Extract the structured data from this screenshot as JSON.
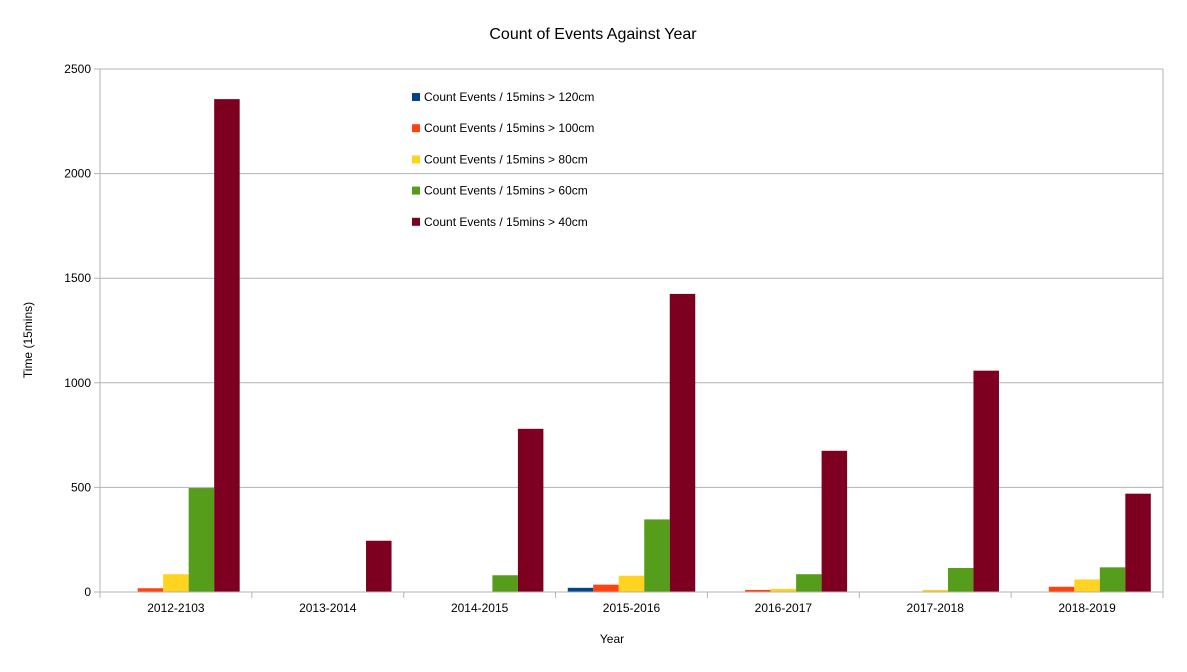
{
  "chart_data": {
    "type": "bar",
    "title": "Count of Events Against Year",
    "xlabel": "Year",
    "ylabel": "Time (15mins)",
    "ylim": [
      0,
      2500
    ],
    "yticks": [
      0,
      500,
      1000,
      1500,
      2000,
      2500
    ],
    "grid": true,
    "legend_position": "top-center",
    "categories": [
      "2012-2103",
      "2013-2014",
      "2014-2015",
      "2015-2016",
      "2016-2017",
      "2017-2018",
      "2018-2019"
    ],
    "series": [
      {
        "name": "Count Events / 15mins > 120cm",
        "color": "#004586",
        "values": [
          0,
          0,
          0,
          20,
          0,
          0,
          0
        ]
      },
      {
        "name": "Count Events / 15mins > 100cm",
        "color": "#ff420e",
        "values": [
          18,
          0,
          0,
          35,
          10,
          0,
          25
        ]
      },
      {
        "name": "Count Events / 15mins > 80cm",
        "color": "#ffd320",
        "values": [
          85,
          0,
          0,
          78,
          15,
          10,
          60
        ]
      },
      {
        "name": "Count Events / 15mins > 60cm",
        "color": "#579d1c",
        "values": [
          497,
          0,
          80,
          347,
          85,
          115,
          118
        ]
      },
      {
        "name": "Count Events / 15mins > 40cm",
        "color": "#7e0021",
        "values": [
          2356,
          245,
          780,
          1425,
          675,
          1058,
          470
        ]
      }
    ]
  }
}
